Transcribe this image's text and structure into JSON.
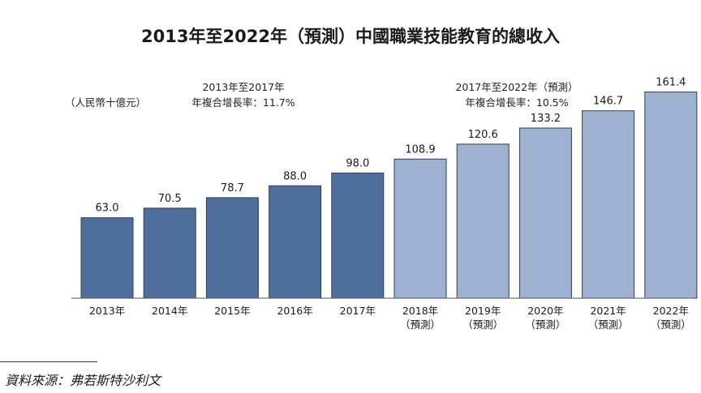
{
  "chart_data": {
    "type": "bar",
    "title": "2013年至2022年（預測）中國職業技能教育的總收入",
    "unit_label": "（人民幣十億元）",
    "categories": [
      "2013年",
      "2014年",
      "2015年",
      "2016年",
      "2017年",
      "2018年",
      "2019年",
      "2020年",
      "2021年",
      "2022年"
    ],
    "forecast_label": "（預測）",
    "forecast_start_index": 5,
    "values": [
      63.0,
      70.5,
      78.7,
      88.0,
      98.0,
      108.9,
      120.6,
      133.2,
      146.7,
      161.4
    ],
    "value_labels": [
      "63.0",
      "70.5",
      "78.7",
      "88.0",
      "98.0",
      "108.9",
      "120.6",
      "133.2",
      "146.7",
      "161.4"
    ],
    "ylim": [
      0,
      170
    ],
    "cagr": [
      {
        "period": "2013年至2017年",
        "text": "年複合增長率：11.7%"
      },
      {
        "period": "2017年至2022年（預測）",
        "text": "年複合增長率：10.5%"
      }
    ],
    "colors": {
      "actual": "#4e6f9c",
      "forecast": "#9fb1d0",
      "edge": "#2f3f58"
    },
    "xlabel": "",
    "ylabel": ""
  },
  "source": "資料來源：弗若斯特沙利文"
}
